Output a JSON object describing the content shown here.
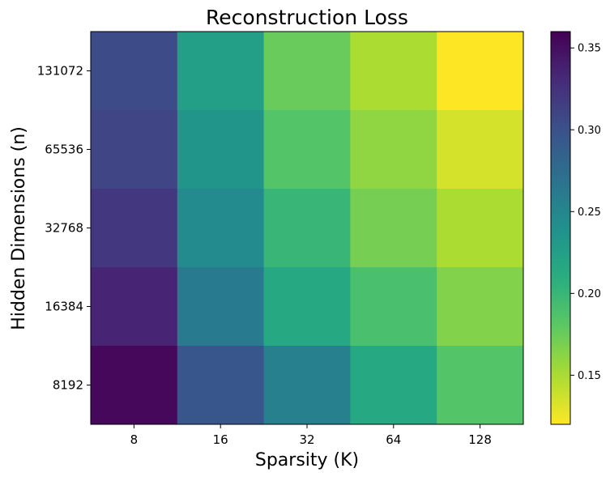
{
  "chart_data": {
    "type": "heatmap",
    "title": "Reconstruction Loss",
    "xlabel": "Sparsity (K)",
    "ylabel": "Hidden Dimensions (n)",
    "x_categories": [
      "8",
      "16",
      "32",
      "64",
      "128"
    ],
    "y_categories": [
      "131072",
      "65536",
      "32768",
      "16384",
      "8192"
    ],
    "values": [
      [
        0.305,
        0.225,
        0.175,
        0.15,
        0.12
      ],
      [
        0.31,
        0.235,
        0.185,
        0.16,
        0.135
      ],
      [
        0.32,
        0.245,
        0.2,
        0.17,
        0.15
      ],
      [
        0.335,
        0.26,
        0.215,
        0.19,
        0.165
      ],
      [
        0.355,
        0.295,
        0.255,
        0.215,
        0.185
      ]
    ],
    "colormap": "viridis_r",
    "colorbar": {
      "vmin": 0.12,
      "vmax": 0.36,
      "ticks": [
        0.15,
        0.2,
        0.25,
        0.3,
        0.35
      ],
      "tick_labels": [
        "0.15",
        "0.20",
        "0.25",
        "0.30",
        "0.35"
      ]
    },
    "grid": false,
    "legend": "none"
  }
}
